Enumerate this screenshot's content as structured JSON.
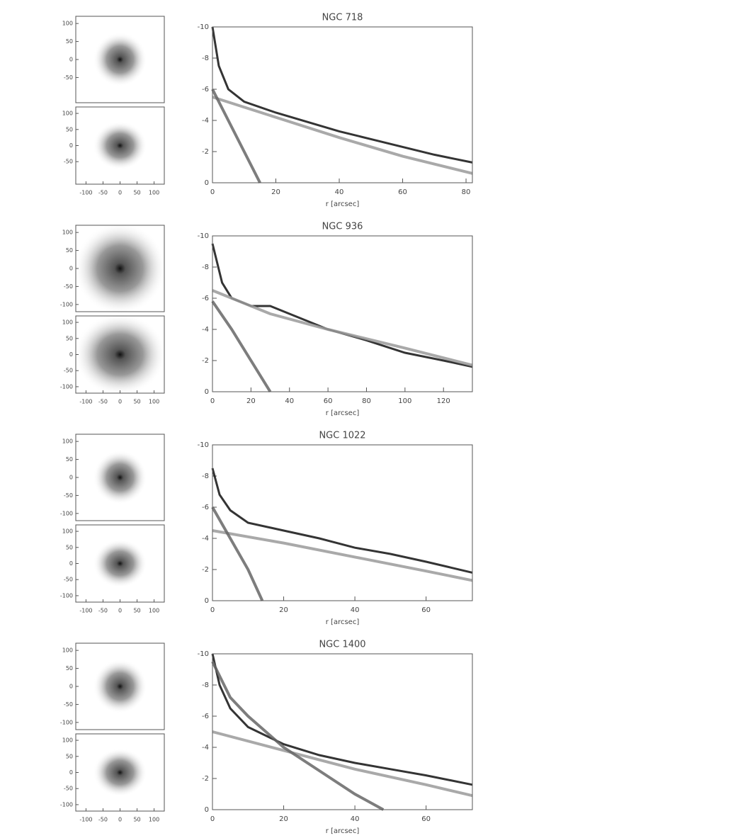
{
  "chart_data": [
    {
      "type": "line",
      "title": "NGC 718",
      "xlabel": "r [arcsec]",
      "xlim": [
        0,
        82
      ],
      "xticks": [
        0,
        20,
        40,
        60,
        80
      ],
      "ylim": [
        0,
        -10
      ],
      "yticks": [
        -10,
        -8,
        -6,
        -4,
        -2,
        0
      ],
      "image_panels": {
        "xlim": [
          -130,
          130
        ],
        "ylim": [
          -120,
          120
        ],
        "xticks": [
          -100,
          -50,
          0,
          50,
          100
        ],
        "yticks": [
          100,
          50,
          0,
          -50
        ]
      },
      "series": [
        {
          "color": "#111111",
          "x": [
            0,
            2,
            5,
            10,
            20,
            30,
            40,
            50,
            60,
            70,
            82
          ],
          "values": [
            -10,
            -7.5,
            -6,
            -5.2,
            -4.5,
            -3.9,
            -3.3,
            -2.8,
            -2.3,
            -1.8,
            -1.3
          ]
        },
        {
          "color": "#9a9a9a",
          "x": [
            0,
            20,
            40,
            60,
            82
          ],
          "values": [
            -5.5,
            -4.2,
            -2.9,
            -1.7,
            -0.6
          ]
        },
        {
          "color": "#666666",
          "x": [
            0,
            5,
            10,
            15
          ],
          "values": [
            -6,
            -4,
            -2,
            0
          ]
        }
      ]
    },
    {
      "type": "line",
      "title": "NGC 936",
      "xlabel": "r [arcsec]",
      "xlim": [
        0,
        135
      ],
      "xticks": [
        0,
        20,
        40,
        60,
        80,
        100,
        120
      ],
      "ylim": [
        0,
        -10
      ],
      "yticks": [
        -10,
        -8,
        -6,
        -4,
        -2,
        0
      ],
      "image_panels": {
        "xlim": [
          -130,
          130
        ],
        "ylim": [
          -120,
          120
        ],
        "xticks": [
          -100,
          -50,
          0,
          50,
          100
        ],
        "yticks": [
          100,
          50,
          0,
          -50,
          -100
        ]
      },
      "series": [
        {
          "color": "#111111",
          "x": [
            0,
            5,
            10,
            20,
            30,
            40,
            60,
            80,
            100,
            120,
            135
          ],
          "values": [
            -9.5,
            -7,
            -6,
            -5.5,
            -5.5,
            -5,
            -4,
            -3.3,
            -2.5,
            -2,
            -1.6
          ]
        },
        {
          "color": "#9a9a9a",
          "x": [
            0,
            30,
            60,
            100,
            135
          ],
          "values": [
            -6.5,
            -5,
            -4,
            -2.8,
            -1.7
          ]
        },
        {
          "color": "#666666",
          "x": [
            0,
            10,
            20,
            30
          ],
          "values": [
            -5.8,
            -4,
            -2,
            0
          ]
        }
      ]
    },
    {
      "type": "line",
      "title": "NGC 1022",
      "xlabel": "r [arcsec]",
      "xlim": [
        0,
        73
      ],
      "xticks": [
        0,
        20,
        40,
        60
      ],
      "ylim": [
        0,
        -10
      ],
      "yticks": [
        -10,
        -8,
        -6,
        -4,
        -2,
        0
      ],
      "image_panels": {
        "xlim": [
          -130,
          130
        ],
        "ylim": [
          -120,
          120
        ],
        "xticks": [
          -100,
          -50,
          0,
          50,
          100
        ],
        "yticks": [
          100,
          50,
          0,
          -50,
          -100
        ]
      },
      "series": [
        {
          "color": "#111111",
          "x": [
            0,
            2,
            5,
            10,
            20,
            30,
            40,
            50,
            60,
            73
          ],
          "values": [
            -8.5,
            -6.8,
            -5.8,
            -5,
            -4.5,
            -4,
            -3.4,
            -3,
            -2.5,
            -1.8
          ]
        },
        {
          "color": "#9a9a9a",
          "x": [
            0,
            20,
            40,
            60,
            73
          ],
          "values": [
            -4.5,
            -3.7,
            -2.8,
            -1.9,
            -1.3
          ]
        },
        {
          "color": "#666666",
          "x": [
            0,
            5,
            10,
            14
          ],
          "values": [
            -6,
            -4,
            -2,
            0
          ]
        }
      ]
    },
    {
      "type": "line",
      "title": "NGC 1400",
      "xlabel": "r [arcsec]",
      "xlim": [
        0,
        73
      ],
      "xticks": [
        0,
        20,
        40,
        60
      ],
      "ylim": [
        0,
        -10
      ],
      "yticks": [
        -10,
        -8,
        -6,
        -4,
        -2,
        0
      ],
      "image_panels": {
        "xlim": [
          -130,
          130
        ],
        "ylim": [
          -120,
          120
        ],
        "xticks": [
          -100,
          -50,
          0,
          50,
          100
        ],
        "yticks": [
          100,
          50,
          0,
          -50,
          -100
        ]
      },
      "series": [
        {
          "color": "#111111",
          "x": [
            0,
            2,
            5,
            10,
            20,
            30,
            40,
            50,
            60,
            73
          ],
          "values": [
            -10,
            -8,
            -6.5,
            -5.3,
            -4.2,
            -3.5,
            -3,
            -2.6,
            -2.2,
            -1.6
          ]
        },
        {
          "color": "#9a9a9a",
          "x": [
            0,
            20,
            40,
            60,
            73
          ],
          "values": [
            -5,
            -3.8,
            -2.6,
            -1.6,
            -0.9
          ]
        },
        {
          "color": "#666666",
          "x": [
            0,
            5,
            10,
            20,
            30,
            40,
            48
          ],
          "values": [
            -9.5,
            -7.2,
            -6,
            -4,
            -2.5,
            -1,
            0
          ]
        }
      ]
    }
  ]
}
